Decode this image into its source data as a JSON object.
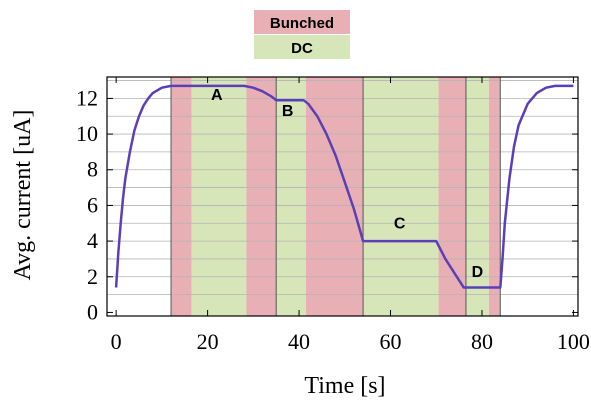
{
  "chart_data": {
    "type": "line",
    "xlabel": "Time [s]",
    "ylabel": "Avg. current [uA]",
    "xlim": [
      -2,
      101
    ],
    "ylim": [
      -0.2,
      13.2
    ],
    "xticks": [
      0,
      20,
      40,
      60,
      80,
      100
    ],
    "yticks": [
      0,
      2,
      4,
      6,
      8,
      10,
      12
    ],
    "ygrid": [
      1,
      2,
      3,
      4,
      5,
      6,
      7,
      8,
      9,
      10,
      11,
      12,
      13
    ],
    "grid": "horizontal",
    "legend": {
      "placement": "top-center",
      "entries": [
        {
          "label": "Bunched",
          "color": "#e8b0b4"
        },
        {
          "label": "DC",
          "color": "#d6e6b8"
        }
      ]
    },
    "bands": [
      {
        "type": "Bunched",
        "from": 12,
        "to": 16.5
      },
      {
        "type": "DC",
        "from": 16.5,
        "to": 28.5
      },
      {
        "type": "Bunched",
        "from": 28.5,
        "to": 35
      },
      {
        "type": "DC",
        "from": 35,
        "to": 41.5
      },
      {
        "type": "Bunched",
        "from": 41.5,
        "to": 54
      },
      {
        "type": "DC",
        "from": 54,
        "to": 70.5
      },
      {
        "type": "Bunched",
        "from": 70.5,
        "to": 76.5
      },
      {
        "type": "DC",
        "from": 76.5,
        "to": 81.5
      },
      {
        "type": "Bunched",
        "from": 81.5,
        "to": 84
      }
    ],
    "band_dividers": [
      12,
      35,
      54,
      76.5,
      84
    ],
    "series": [
      {
        "color": "#5b3fb8",
        "x": [
          0,
          0.5,
          1,
          1.5,
          2,
          3,
          4,
          5,
          6,
          7,
          8,
          10,
          12,
          16,
          20,
          24,
          28,
          30,
          32,
          34,
          35,
          36,
          38,
          40,
          41,
          42,
          44,
          46,
          48,
          50,
          52,
          53,
          54,
          58,
          62,
          66,
          70,
          71,
          72,
          74,
          76,
          77,
          80,
          83,
          84,
          84.5,
          85,
          86,
          87,
          88,
          90,
          92,
          94,
          96,
          98,
          100
        ],
        "y": [
          1.4,
          3.4,
          5.0,
          6.4,
          7.5,
          9.0,
          10.2,
          11.0,
          11.6,
          12.0,
          12.3,
          12.6,
          12.7,
          12.7,
          12.7,
          12.7,
          12.7,
          12.6,
          12.4,
          12.1,
          11.9,
          11.9,
          11.9,
          11.9,
          11.9,
          11.7,
          11.0,
          10.0,
          8.8,
          7.3,
          5.8,
          4.9,
          4.0,
          4.0,
          4.0,
          4.0,
          4.0,
          3.5,
          3.0,
          2.2,
          1.4,
          1.4,
          1.4,
          1.4,
          1.4,
          3.0,
          5.0,
          7.5,
          9.3,
          10.5,
          11.7,
          12.3,
          12.6,
          12.7,
          12.7,
          12.7
        ]
      }
    ],
    "annotations": [
      {
        "text": "A",
        "x": 22,
        "y": 11.9
      },
      {
        "text": "B",
        "x": 37.5,
        "y": 11.0
      },
      {
        "text": "C",
        "x": 62,
        "y": 4.7
      },
      {
        "text": "D",
        "x": 79,
        "y": 2.0
      }
    ]
  }
}
